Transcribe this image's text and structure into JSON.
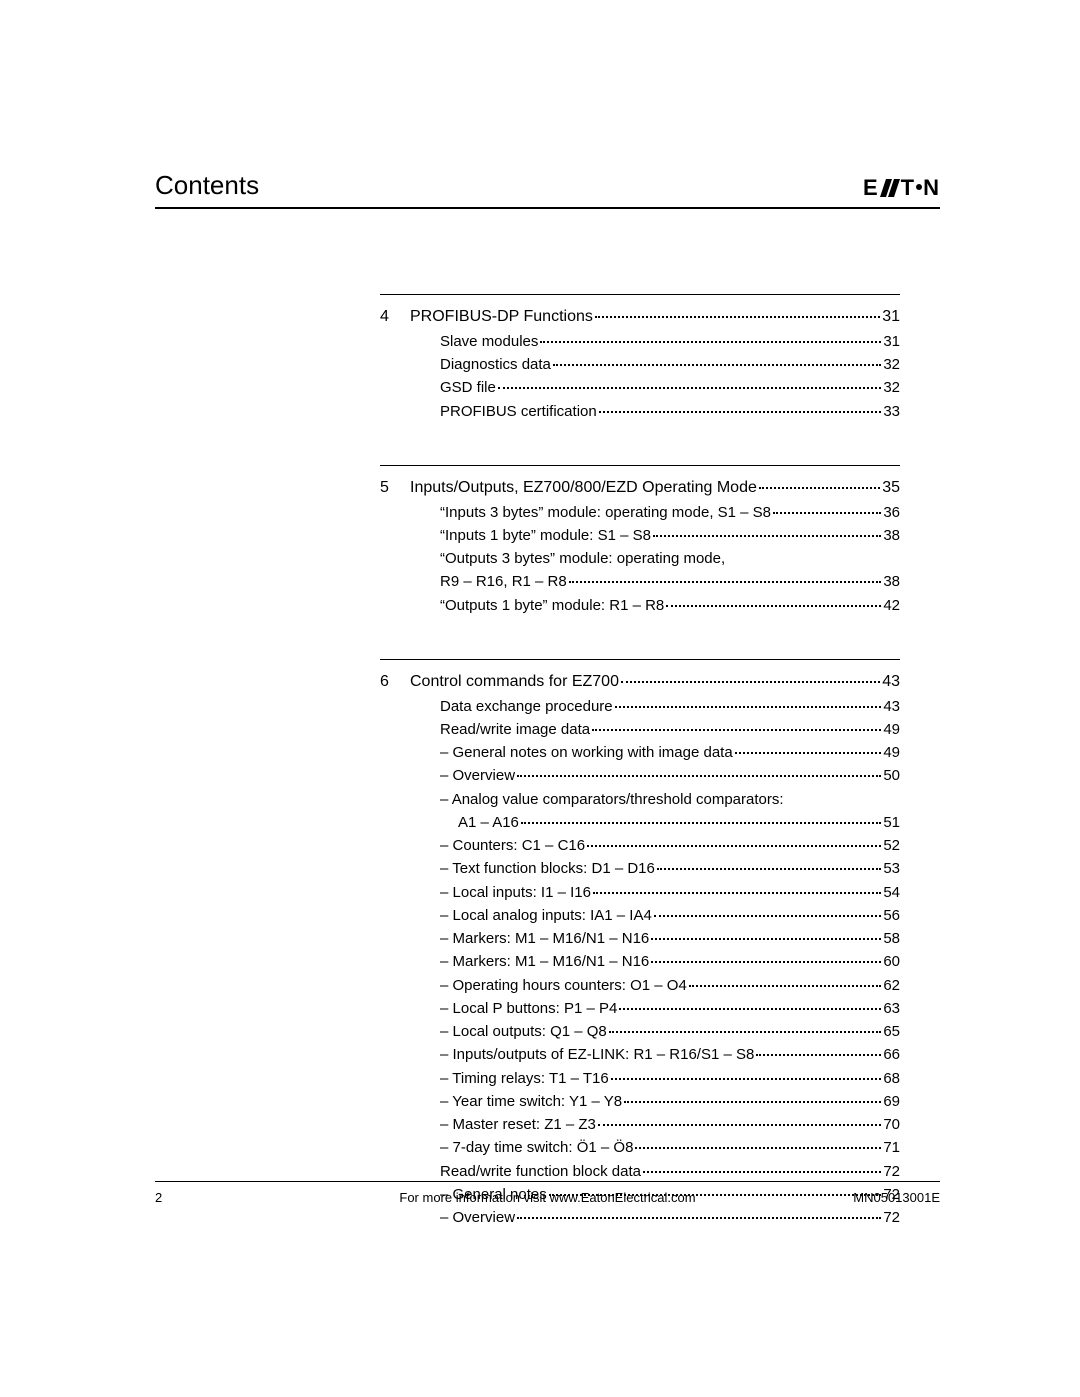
{
  "header": {
    "title": "Contents",
    "logo_text_1": "E",
    "logo_text_2": "T",
    "logo_text_3": "N"
  },
  "sections": [
    {
      "num": "4",
      "head": {
        "t": "PROFIBUS-DP Functions",
        "p": "31"
      },
      "lines": [
        {
          "lvl": "sub",
          "t": "Slave modules",
          "p": "31"
        },
        {
          "lvl": "sub",
          "t": "Diagnostics data",
          "p": "32"
        },
        {
          "lvl": "sub",
          "t": "GSD file",
          "p": "32"
        },
        {
          "lvl": "sub",
          "t": "PROFIBUS certification",
          "p": "33"
        }
      ]
    },
    {
      "num": "5",
      "head": {
        "t": "Inputs/Outputs, EZ700/800/EZD Operating Mode",
        "p": "35"
      },
      "lines": [
        {
          "lvl": "sub",
          "t": "“Inputs 3 bytes” module: operating mode, S1 – S8",
          "p": "36"
        },
        {
          "lvl": "sub",
          "t": "“Inputs 1 byte” module: S1 – S8",
          "p": "38"
        },
        {
          "lvl": "sub",
          "t": "“Outputs 3 bytes” module: operating mode,",
          "p": "",
          "nodots": true
        },
        {
          "lvl": "sub",
          "t": "R9 – R16, R1 – R8",
          "p": "38"
        },
        {
          "lvl": "sub",
          "t": "“Outputs 1 byte” module: R1 – R8",
          "p": "42"
        }
      ]
    },
    {
      "num": "6",
      "head": {
        "t": "Control commands for EZ700",
        "p": "43"
      },
      "lines": [
        {
          "lvl": "sub",
          "t": "Data exchange procedure",
          "p": "43"
        },
        {
          "lvl": "sub",
          "t": "Read/write image data",
          "p": "49"
        },
        {
          "lvl": "dash",
          "t": "General notes on working with image data",
          "p": "49"
        },
        {
          "lvl": "dash",
          "t": "Overview",
          "p": "50"
        },
        {
          "lvl": "dash",
          "t": "Analog value comparators/threshold comparators:",
          "p": "",
          "nodots": true
        },
        {
          "lvl": "dash2",
          "t": "A1 – A16",
          "p": "51"
        },
        {
          "lvl": "dash",
          "t": "Counters: C1 – C16",
          "p": "52"
        },
        {
          "lvl": "dash",
          "t": "Text function blocks: D1 – D16",
          "p": "53"
        },
        {
          "lvl": "dash",
          "t": "Local inputs: I1 – I16",
          "p": "54"
        },
        {
          "lvl": "dash",
          "t": "Local analog inputs: IA1 – IA4",
          "p": "56"
        },
        {
          "lvl": "dash",
          "t": "Markers: M1 – M16/N1 – N16",
          "p": "58"
        },
        {
          "lvl": "dash",
          "t": "Markers: M1 – M16/N1 – N16",
          "p": "60"
        },
        {
          "lvl": "dash",
          "t": "Operating hours counters: O1 – O4",
          "p": "62"
        },
        {
          "lvl": "dash",
          "t": "Local P buttons: P1 – P4",
          "p": "63"
        },
        {
          "lvl": "dash",
          "t": "Local outputs: Q1 – Q8",
          "p": "65"
        },
        {
          "lvl": "dash",
          "t": "Inputs/outputs of EZ-LINK: R1 – R16/S1 – S8",
          "p": "66"
        },
        {
          "lvl": "dash",
          "t": "Timing relays: T1 – T16",
          "p": "68"
        },
        {
          "lvl": "dash",
          "t": "Year time switch: Y1 – Y8",
          "p": "69"
        },
        {
          "lvl": "dash",
          "t": "Master reset: Z1 – Z3",
          "p": "70"
        },
        {
          "lvl": "dash",
          "t": "7-day time switch: Ö1 – Ö8",
          "p": "71"
        },
        {
          "lvl": "sub",
          "t": "Read/write function block data",
          "p": "72"
        },
        {
          "lvl": "dash",
          "t": "General notes",
          "p": "72"
        },
        {
          "lvl": "dash",
          "t": "Overview",
          "p": "72"
        }
      ]
    }
  ],
  "footer": {
    "page": "2",
    "center": "For more information visit  www.EatonElectrical.com",
    "right": "MN05013001E"
  }
}
